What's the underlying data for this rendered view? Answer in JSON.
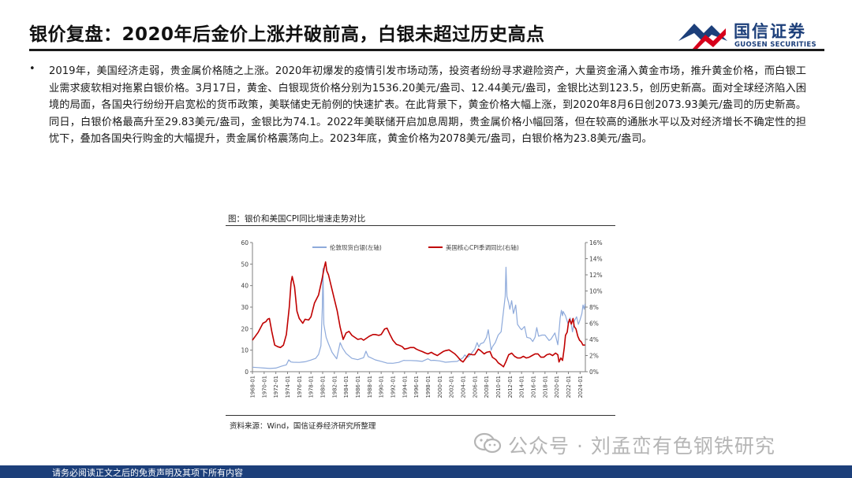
{
  "header": {
    "title": "银价复盘：2020年后金价上涨并破前高，白银未超过历史高点"
  },
  "logo": {
    "name_cn": "国信证券",
    "name_en": "GUOSEN SECURITIES",
    "colors": {
      "blue": "#1c3f7a",
      "red": "#d7001b"
    }
  },
  "body": {
    "bullet_symbol": "•",
    "paragraph": "2019年，美国经济走弱，贵金属价格随之上涨。2020年初爆发的疫情引发市场动荡，投资者纷纷寻求避险资产，大量资金涌入黄金市场，推升黄金价格，而白银工业需求疲软相对拖累白银价格。3月17日，黄金、白银现货价格分别为1536.20美元/盎司、12.44美元/盎司，金银比达到123.5，创历史新高。面对全球经济陷入困境的局面，各国央行纷纷开启宽松的货币政策，美联储史无前例的快速扩表。在此背景下，黄金价格大幅上涨，到2020年8月6日创2073.93美元/盎司的历史新高。同日，白银价格最高升至29.83美元/盎司，金银比为74.1。2022年美联储开启加息周期，贵金属价格小幅回落，但在较高的通胀水平以及对经济增长不确定性的担忧下，叠加各国央行购金的大幅提升，贵金属价格震荡向上。2023年底，黄金价格为2078美元/盎司，白银价格为23.8美元/盎司。"
  },
  "figure": {
    "title": "图：银价和美国CPI同比增速走势对比",
    "source": "资料来源：Wind，国信证券经济研究所整理"
  },
  "chart_data": {
    "type": "line",
    "x_ticks": [
      "1968-01",
      "1970-01",
      "1972-01",
      "1974-01",
      "1976-01",
      "1978-01",
      "1980-01",
      "1982-01",
      "1984-01",
      "1986-01",
      "1988-01",
      "1990-01",
      "1992-01",
      "1994-01",
      "1996-01",
      "1998-01",
      "2000-01",
      "2002-01",
      "2004-01",
      "2006-01",
      "2008-01",
      "2010-01",
      "2012-01",
      "2014-01",
      "2016-01",
      "2018-01",
      "2020-01",
      "2022-01",
      "2024-01"
    ],
    "x_range": [
      1968.0,
      2024.9
    ],
    "left_axis": {
      "ticks": [
        "0",
        "10",
        "20",
        "30",
        "40",
        "50",
        "60"
      ],
      "ylim": [
        0,
        60
      ]
    },
    "right_axis": {
      "ticks": [
        "0%",
        "2%",
        "4%",
        "6%",
        "8%",
        "10%",
        "12%",
        "14%",
        "16%"
      ],
      "ylim": [
        0,
        16
      ]
    },
    "grid": false,
    "legend_position": "top",
    "series": [
      {
        "name": "伦敦现货白银(左轴)",
        "axis": "left",
        "color": "#8eaadb",
        "points": [
          [
            1968.0,
            2.1
          ],
          [
            1969.0,
            1.9
          ],
          [
            1970.0,
            1.7
          ],
          [
            1971.0,
            1.5
          ],
          [
            1972.0,
            1.7
          ],
          [
            1973.0,
            2.6
          ],
          [
            1973.8,
            3.2
          ],
          [
            1974.2,
            5.5
          ],
          [
            1974.6,
            4.5
          ],
          [
            1975.0,
            4.4
          ],
          [
            1976.0,
            4.3
          ],
          [
            1977.0,
            4.6
          ],
          [
            1978.0,
            5.4
          ],
          [
            1978.8,
            6.2
          ],
          [
            1979.3,
            8.0
          ],
          [
            1979.7,
            12.0
          ],
          [
            1979.95,
            30.0
          ],
          [
            1980.05,
            48.0
          ],
          [
            1980.2,
            22.0
          ],
          [
            1980.6,
            16.0
          ],
          [
            1981.0,
            13.0
          ],
          [
            1981.6,
            9.0
          ],
          [
            1982.0,
            7.5
          ],
          [
            1982.4,
            6.0
          ],
          [
            1983.0,
            13.5
          ],
          [
            1983.4,
            11.0
          ],
          [
            1984.0,
            8.5
          ],
          [
            1985.0,
            6.2
          ],
          [
            1986.0,
            5.6
          ],
          [
            1987.0,
            6.5
          ],
          [
            1987.4,
            9.5
          ],
          [
            1987.8,
            7.0
          ],
          [
            1988.0,
            6.8
          ],
          [
            1989.0,
            5.5
          ],
          [
            1990.0,
            4.8
          ],
          [
            1991.0,
            4.0
          ],
          [
            1992.0,
            3.9
          ],
          [
            1993.0,
            4.3
          ],
          [
            1993.9,
            5.3
          ],
          [
            1994.0,
            5.2
          ],
          [
            1995.0,
            5.2
          ],
          [
            1996.0,
            5.1
          ],
          [
            1997.0,
            4.8
          ],
          [
            1998.0,
            6.0
          ],
          [
            1998.5,
            5.2
          ],
          [
            1999.0,
            5.3
          ],
          [
            2000.0,
            5.0
          ],
          [
            2001.0,
            4.4
          ],
          [
            2002.0,
            4.6
          ],
          [
            2003.0,
            4.8
          ],
          [
            2004.0,
            6.5
          ],
          [
            2004.3,
            7.8
          ],
          [
            2004.7,
            6.7
          ],
          [
            2005.0,
            7.0
          ],
          [
            2006.0,
            10.5
          ],
          [
            2006.4,
            13.5
          ],
          [
            2006.7,
            11.5
          ],
          [
            2007.0,
            13.0
          ],
          [
            2007.5,
            13.5
          ],
          [
            2008.0,
            16.0
          ],
          [
            2008.3,
            19.5
          ],
          [
            2008.8,
            10.0
          ],
          [
            2009.0,
            11.5
          ],
          [
            2009.5,
            13.5
          ],
          [
            2010.0,
            17.0
          ],
          [
            2010.5,
            18.5
          ],
          [
            2010.9,
            28.0
          ],
          [
            2011.2,
            35.0
          ],
          [
            2011.33,
            48.5
          ],
          [
            2011.5,
            35.0
          ],
          [
            2011.8,
            32.0
          ],
          [
            2012.0,
            29.0
          ],
          [
            2012.3,
            33.0
          ],
          [
            2012.6,
            27.0
          ],
          [
            2013.0,
            31.0
          ],
          [
            2013.3,
            22.0
          ],
          [
            2013.8,
            20.0
          ],
          [
            2014.0,
            19.5
          ],
          [
            2014.5,
            21.0
          ],
          [
            2014.9,
            16.0
          ],
          [
            2015.5,
            15.5
          ],
          [
            2015.9,
            14.0
          ],
          [
            2016.3,
            16.0
          ],
          [
            2016.6,
            20.5
          ],
          [
            2016.9,
            16.5
          ],
          [
            2017.5,
            17.0
          ],
          [
            2018.0,
            17.0
          ],
          [
            2018.7,
            14.5
          ],
          [
            2019.0,
            15.0
          ],
          [
            2019.7,
            18.0
          ],
          [
            2020.2,
            12.5
          ],
          [
            2020.6,
            25.0
          ],
          [
            2020.8,
            28.5
          ],
          [
            2021.0,
            26.0
          ],
          [
            2021.1,
            28.0
          ],
          [
            2021.5,
            26.0
          ],
          [
            2021.9,
            22.5
          ],
          [
            2022.3,
            25.0
          ],
          [
            2022.7,
            18.5
          ],
          [
            2023.0,
            23.5
          ],
          [
            2023.4,
            25.5
          ],
          [
            2023.7,
            22.0
          ],
          [
            2023.95,
            23.8
          ],
          [
            2024.3,
            27.0
          ],
          [
            2024.5,
            31.0
          ],
          [
            2024.7,
            29.0
          ],
          [
            2024.85,
            31.5
          ]
        ]
      },
      {
        "name": "美国核心CPI季调同比(右轴)",
        "axis": "right",
        "color": "#c00000",
        "points": [
          [
            1968.0,
            3.9
          ],
          [
            1969.0,
            4.9
          ],
          [
            1969.8,
            6.0
          ],
          [
            1970.3,
            6.2
          ],
          [
            1970.6,
            6.5
          ],
          [
            1970.9,
            6.6
          ],
          [
            1971.3,
            5.0
          ],
          [
            1971.8,
            3.3
          ],
          [
            1972.3,
            3.1
          ],
          [
            1972.8,
            3.0
          ],
          [
            1973.3,
            3.3
          ],
          [
            1973.8,
            4.6
          ],
          [
            1974.3,
            8.0
          ],
          [
            1974.6,
            11.0
          ],
          [
            1974.8,
            11.8
          ],
          [
            1975.2,
            10.5
          ],
          [
            1975.6,
            7.5
          ],
          [
            1976.0,
            6.6
          ],
          [
            1976.6,
            6.0
          ],
          [
            1977.0,
            6.5
          ],
          [
            1977.6,
            6.4
          ],
          [
            1978.0,
            6.8
          ],
          [
            1978.6,
            8.5
          ],
          [
            1979.3,
            9.5
          ],
          [
            1979.9,
            11.5
          ],
          [
            1980.3,
            13.0
          ],
          [
            1980.5,
            13.6
          ],
          [
            1980.7,
            12.5
          ],
          [
            1981.0,
            12.0
          ],
          [
            1981.5,
            10.5
          ],
          [
            1982.0,
            9.0
          ],
          [
            1982.5,
            7.5
          ],
          [
            1983.0,
            5.5
          ],
          [
            1983.5,
            4.0
          ],
          [
            1984.0,
            4.8
          ],
          [
            1984.5,
            5.0
          ],
          [
            1985.0,
            4.5
          ],
          [
            1985.6,
            4.2
          ],
          [
            1986.0,
            4.0
          ],
          [
            1986.6,
            4.1
          ],
          [
            1987.0,
            3.9
          ],
          [
            1987.6,
            4.2
          ],
          [
            1988.0,
            4.4
          ],
          [
            1988.6,
            4.6
          ],
          [
            1989.0,
            4.6
          ],
          [
            1989.6,
            4.5
          ],
          [
            1990.0,
            4.6
          ],
          [
            1990.6,
            5.3
          ],
          [
            1991.0,
            5.4
          ],
          [
            1991.5,
            4.6
          ],
          [
            1992.0,
            3.9
          ],
          [
            1992.6,
            3.4
          ],
          [
            1993.0,
            3.3
          ],
          [
            1993.6,
            3.1
          ],
          [
            1994.0,
            2.8
          ],
          [
            1994.6,
            2.9
          ],
          [
            1995.0,
            3.0
          ],
          [
            1995.6,
            3.0
          ],
          [
            1996.0,
            2.8
          ],
          [
            1996.6,
            2.6
          ],
          [
            1997.0,
            2.5
          ],
          [
            1997.6,
            2.3
          ],
          [
            1998.0,
            2.2
          ],
          [
            1998.6,
            2.4
          ],
          [
            1999.0,
            2.2
          ],
          [
            1999.6,
            2.0
          ],
          [
            2000.0,
            2.2
          ],
          [
            2000.6,
            2.5
          ],
          [
            2001.0,
            2.6
          ],
          [
            2001.6,
            2.7
          ],
          [
            2002.0,
            2.5
          ],
          [
            2002.6,
            2.2
          ],
          [
            2003.0,
            1.9
          ],
          [
            2003.6,
            1.4
          ],
          [
            2004.0,
            1.2
          ],
          [
            2004.6,
            1.8
          ],
          [
            2005.0,
            2.2
          ],
          [
            2005.6,
            2.1
          ],
          [
            2006.0,
            2.1
          ],
          [
            2006.6,
            2.8
          ],
          [
            2007.0,
            2.6
          ],
          [
            2007.6,
            2.2
          ],
          [
            2008.0,
            2.4
          ],
          [
            2008.6,
            2.5
          ],
          [
            2009.0,
            1.8
          ],
          [
            2009.6,
            1.5
          ],
          [
            2010.0,
            1.1
          ],
          [
            2010.6,
            0.8
          ],
          [
            2010.9,
            0.6
          ],
          [
            2011.3,
            1.2
          ],
          [
            2011.8,
            2.1
          ],
          [
            2012.3,
            2.3
          ],
          [
            2012.8,
            1.9
          ],
          [
            2013.3,
            1.7
          ],
          [
            2013.8,
            1.7
          ],
          [
            2014.3,
            1.9
          ],
          [
            2014.8,
            1.7
          ],
          [
            2015.3,
            1.8
          ],
          [
            2015.8,
            2.0
          ],
          [
            2016.3,
            2.2
          ],
          [
            2016.8,
            2.2
          ],
          [
            2017.3,
            1.8
          ],
          [
            2017.8,
            1.8
          ],
          [
            2018.3,
            2.1
          ],
          [
            2018.8,
            2.2
          ],
          [
            2019.3,
            2.0
          ],
          [
            2019.8,
            2.3
          ],
          [
            2020.2,
            2.1
          ],
          [
            2020.4,
            1.2
          ],
          [
            2020.7,
            1.7
          ],
          [
            2021.0,
            1.4
          ],
          [
            2021.3,
            3.0
          ],
          [
            2021.5,
            4.5
          ],
          [
            2021.8,
            4.9
          ],
          [
            2022.0,
            6.0
          ],
          [
            2022.2,
            6.5
          ],
          [
            2022.5,
            5.9
          ],
          [
            2022.8,
            6.6
          ],
          [
            2023.0,
            5.6
          ],
          [
            2023.3,
            5.3
          ],
          [
            2023.6,
            4.4
          ],
          [
            2023.9,
            3.9
          ],
          [
            2024.2,
            3.7
          ],
          [
            2024.5,
            3.3
          ],
          [
            2024.85,
            3.3
          ]
        ]
      }
    ]
  },
  "watermark": {
    "text": "公众号 · 刘孟峦有色钢铁研究"
  },
  "footer": {
    "disclaimer": "请务必阅读正文之后的免责声明及其项下所有内容"
  }
}
